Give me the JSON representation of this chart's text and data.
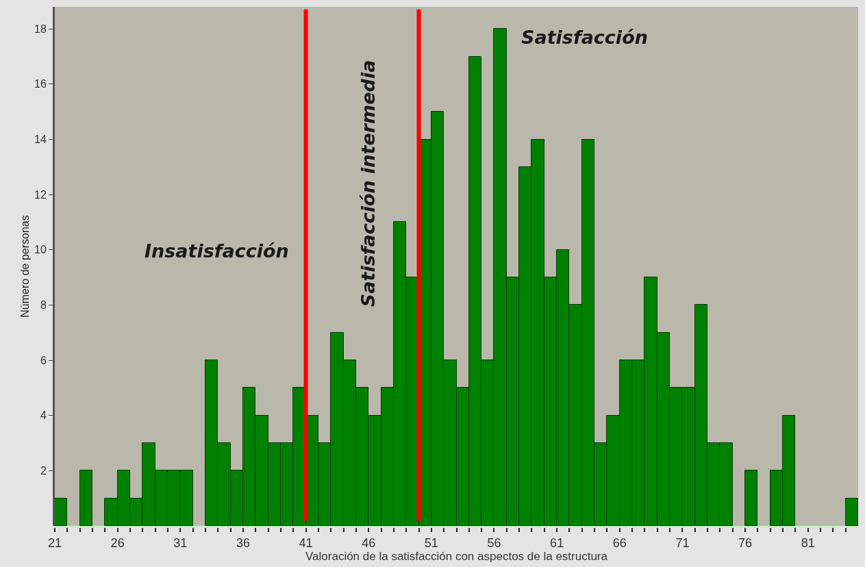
{
  "chart_data": {
    "type": "histogram",
    "xlabel": "Valoración de la satisfacción con aspectos de la estructura",
    "ylabel": "Número de personas",
    "bins": [
      21,
      22,
      23,
      24,
      25,
      26,
      27,
      28,
      29,
      30,
      31,
      32,
      33,
      34,
      35,
      36,
      37,
      38,
      39,
      40,
      41,
      42,
      43,
      44,
      45,
      46,
      47,
      48,
      49,
      50,
      51,
      52,
      53,
      54,
      55,
      56,
      57,
      58,
      59,
      60,
      61,
      62,
      63,
      64,
      65,
      66,
      67,
      68,
      69,
      70,
      71,
      72,
      73,
      74,
      75,
      76,
      77,
      78,
      79,
      80,
      81,
      82,
      83,
      84,
      85
    ],
    "values": [
      1,
      0,
      2,
      0,
      1,
      2,
      1,
      3,
      2,
      2,
      2,
      0,
      6,
      3,
      2,
      5,
      4,
      3,
      3,
      5,
      4,
      3,
      7,
      6,
      5,
      4,
      5,
      11,
      9,
      14,
      15,
      6,
      5,
      17,
      6,
      18,
      9,
      13,
      14,
      9,
      10,
      8,
      14,
      3,
      4,
      6,
      6,
      9,
      7,
      5,
      5,
      8,
      3,
      3,
      0,
      2,
      0,
      2,
      4,
      0,
      0,
      0,
      0,
      1
    ],
    "color": "#008000",
    "xlim": [
      21,
      85
    ],
    "xticks": [
      21,
      {
        "value": 22,
        "label": null
      },
      {
        "value": 23,
        "label": null
      },
      {
        "value": 24,
        "label": null
      },
      {
        "value": 25,
        "label": null
      },
      26,
      {
        "value": 27,
        "label": null
      },
      {
        "value": 28,
        "label": null
      },
      {
        "value": 29,
        "label": null
      },
      {
        "value": 30,
        "label": null
      },
      31,
      {
        "value": 32,
        "label": null
      },
      {
        "value": 33,
        "label": null
      },
      {
        "value": 34,
        "label": null
      },
      {
        "value": 35,
        "label": null
      },
      36,
      {
        "value": 37,
        "label": null
      },
      {
        "value": 38,
        "label": null
      },
      {
        "value": 39,
        "label": null
      },
      {
        "value": 40,
        "label": null
      },
      41,
      {
        "value": 42,
        "label": null
      },
      {
        "value": 43,
        "label": null
      },
      {
        "value": 44,
        "label": null
      },
      {
        "value": 45,
        "label": null
      },
      46,
      {
        "value": 47,
        "label": null
      },
      {
        "value": 48,
        "label": null
      },
      {
        "value": 49,
        "label": null
      },
      {
        "value": 50,
        "label": null
      },
      51,
      {
        "value": 52,
        "label": null
      },
      {
        "value": 53,
        "label": null
      },
      {
        "value": 54,
        "label": null
      },
      {
        "value": 55,
        "label": null
      },
      56,
      {
        "value": 57,
        "label": null
      },
      {
        "value": 58,
        "label": null
      },
      {
        "value": 59,
        "label": null
      },
      {
        "value": 60,
        "label": null
      },
      61,
      {
        "value": 62,
        "label": null
      },
      {
        "value": 63,
        "label": null
      },
      {
        "value": 64,
        "label": null
      },
      {
        "value": 65,
        "label": null
      },
      66,
      {
        "value": 67,
        "label": null
      },
      {
        "value": 68,
        "label": null
      },
      {
        "value": 69,
        "label": null
      },
      {
        "value": 70,
        "label": null
      },
      71,
      {
        "value": 72,
        "label": null
      },
      {
        "value": 73,
        "label": null
      },
      {
        "value": 74,
        "label": null
      },
      {
        "value": 75,
        "label": null
      },
      76,
      {
        "value": 77,
        "label": null
      },
      {
        "value": 78,
        "label": null
      },
      {
        "value": 79,
        "label": null
      },
      {
        "value": 80,
        "label": null
      },
      81,
      {
        "value": 82,
        "label": null
      },
      {
        "value": 83,
        "label": null
      },
      {
        "value": 84,
        "label": null
      }
    ],
    "ylim": [
      0,
      18.8
    ],
    "yticks": [
      2,
      4,
      6,
      8,
      10,
      12,
      14,
      16,
      18
    ],
    "grid": false,
    "ref_lines": [
      {
        "axis": "x",
        "value": 41,
        "color": "#ff0000"
      },
      {
        "axis": "x",
        "value": 50,
        "color": "#ff0000"
      }
    ],
    "annotations": [
      "Insatisfacción",
      "Satisfacción intermedia",
      "Satisfacción"
    ]
  }
}
